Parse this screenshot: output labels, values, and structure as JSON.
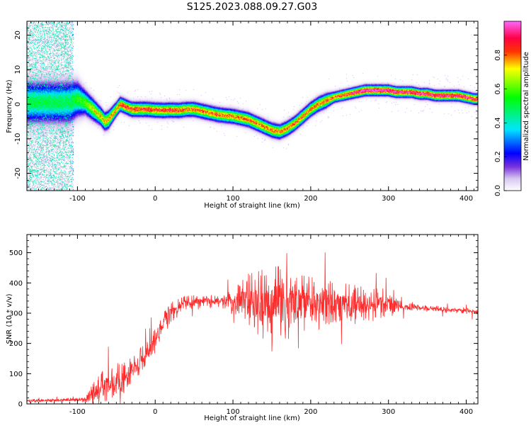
{
  "figure_title": "S125.2023.088.09.27.G03",
  "colorbar": {
    "label": "Normalized spectral amplitude",
    "ticks": [
      0.0,
      0.2,
      0.4,
      0.6,
      0.8
    ],
    "tick_labels": [
      "0.0",
      "0.2",
      "0.4",
      "0.6",
      "0.8"
    ],
    "range": [
      0,
      1
    ]
  },
  "chart_data": [
    {
      "type": "heatmap",
      "title": "",
      "xlabel": "Height of straight line (km)",
      "ylabel": "Frequency (Hz)",
      "xlim": [
        -165,
        415
      ],
      "ylim": [
        -25,
        24
      ],
      "xticks": [
        -100,
        0,
        100,
        200,
        300,
        400
      ],
      "xtick_labels": [
        "-100",
        "0",
        "100",
        "200",
        "300",
        "400"
      ],
      "yticks": [
        -20,
        -10,
        0,
        10,
        20
      ],
      "ytick_labels": [
        "-20",
        "-10",
        "0",
        "10",
        "20"
      ],
      "colormap": [
        "#ffffff",
        "#9966ee",
        "#5500cc",
        "#0000ff",
        "#00e0ff",
        "#00ff00",
        "#ffff00",
        "#ff4400",
        "#ff0044",
        "#ff66ff"
      ],
      "ridge": {
        "x": [
          -110,
          -100,
          -90,
          -80,
          -70,
          -65,
          -60,
          -50,
          -45,
          -40,
          -30,
          -20,
          -10,
          0,
          10,
          20,
          30,
          40,
          50,
          60,
          70,
          80,
          90,
          100,
          110,
          120,
          130,
          140,
          150,
          160,
          170,
          180,
          190,
          200,
          210,
          220,
          230,
          240,
          250,
          260,
          270,
          280,
          290,
          300,
          310,
          320,
          330,
          340,
          350,
          360,
          370,
          380,
          390,
          400,
          410,
          415
        ],
        "y": [
          0.5,
          1.5,
          0.5,
          -1.5,
          -3.5,
          -5.0,
          -4.5,
          -1.5,
          0.0,
          -0.5,
          -1.5,
          -1.5,
          -1.5,
          -1.7,
          -1.8,
          -1.7,
          -1.8,
          -1.5,
          -1.5,
          -2.0,
          -2.5,
          -3.0,
          -3.3,
          -3.5,
          -4.0,
          -4.5,
          -5.5,
          -6.5,
          -7.5,
          -8.0,
          -7.0,
          -5.5,
          -3.5,
          -1.5,
          0.0,
          1.0,
          2.0,
          2.5,
          3.0,
          3.5,
          4.0,
          4.0,
          4.0,
          4.0,
          3.5,
          3.5,
          3.5,
          3.0,
          3.0,
          2.5,
          2.5,
          2.5,
          2.5,
          2.0,
          1.5,
          1.5
        ],
        "width": [
          6.0,
          5.0,
          3.5,
          3.0,
          2.5,
          2.5,
          2.5,
          2.0,
          2.0,
          2.0,
          2.0,
          2.0,
          2.0,
          2.0,
          2.0,
          2.0,
          2.0,
          2.0,
          2.0,
          2.0,
          2.0,
          2.0,
          2.0,
          2.0,
          2.0,
          2.0,
          2.0,
          2.0,
          2.0,
          2.0,
          2.0,
          2.0,
          2.0,
          2.0,
          2.0,
          2.0,
          1.5,
          1.5,
          1.5,
          1.5,
          1.5,
          1.5,
          1.5,
          1.5,
          1.5,
          1.5,
          1.5,
          1.5,
          1.5,
          1.5,
          1.5,
          1.5,
          1.5,
          1.5,
          1.5,
          1.5
        ],
        "peak": [
          0.5,
          0.55,
          0.6,
          0.7,
          0.75,
          0.75,
          0.75,
          0.8,
          0.8,
          0.85,
          0.85,
          0.85,
          0.85,
          0.85,
          0.85,
          0.85,
          0.85,
          0.8,
          0.8,
          0.8,
          0.8,
          0.8,
          0.8,
          0.8,
          0.8,
          0.8,
          0.8,
          0.8,
          0.8,
          0.8,
          0.8,
          0.8,
          0.8,
          0.8,
          0.8,
          0.8,
          0.8,
          0.85,
          0.9,
          0.95,
          1.0,
          1.0,
          1.0,
          1.0,
          0.95,
          0.95,
          0.95,
          0.95,
          0.95,
          0.95,
          0.95,
          0.95,
          0.95,
          0.95,
          0.9,
          0.9
        ]
      },
      "noise_region": {
        "xmin": -165,
        "xmax": -105,
        "level": 0.35
      }
    },
    {
      "type": "line",
      "title": "",
      "xlabel": "Height of straight line (km)",
      "ylabel": "SNR (10 * v/v)",
      "xlim": [
        -165,
        415
      ],
      "ylim": [
        0,
        560
      ],
      "xticks": [
        -100,
        0,
        100,
        200,
        300,
        400
      ],
      "xtick_labels": [
        "-100",
        "0",
        "100",
        "200",
        "300",
        "400"
      ],
      "yticks": [
        0,
        100,
        200,
        300,
        400,
        500
      ],
      "ytick_labels": [
        "0",
        "100",
        "200",
        "300",
        "400",
        "500"
      ],
      "color": "#ff2a2a",
      "series": [
        {
          "envelope_x": [
            -165,
            -120,
            -90,
            -80,
            -70,
            -60,
            -50,
            -40,
            -30,
            -20,
            -10,
            0,
            10,
            20,
            30,
            40,
            50,
            60,
            70,
            80,
            90,
            100,
            110,
            120,
            130,
            140,
            150,
            160,
            170,
            180,
            190,
            200,
            210,
            220,
            230,
            240,
            250,
            260,
            270,
            280,
            290,
            300,
            310,
            320,
            330,
            340,
            350,
            360,
            370,
            380,
            390,
            400,
            410,
            415
          ],
          "envelope_mean": [
            10,
            12,
            15,
            30,
            50,
            70,
            80,
            90,
            110,
            140,
            170,
            210,
            260,
            300,
            320,
            330,
            335,
            340,
            340,
            340,
            335,
            330,
            330,
            335,
            330,
            330,
            330,
            335,
            330,
            330,
            330,
            330,
            330,
            330,
            330,
            330,
            330,
            330,
            330,
            330,
            330,
            330,
            325,
            320,
            320,
            318,
            315,
            315,
            312,
            310,
            310,
            308,
            305,
            300
          ],
          "envelope_spread": [
            6,
            6,
            8,
            40,
            60,
            60,
            55,
            50,
            45,
            45,
            40,
            40,
            40,
            35,
            30,
            30,
            25,
            20,
            20,
            20,
            25,
            60,
            90,
            100,
            110,
            120,
            130,
            120,
            110,
            100,
            95,
            90,
            85,
            80,
            75,
            70,
            70,
            65,
            60,
            60,
            55,
            50,
            25,
            15,
            12,
            10,
            10,
            10,
            10,
            10,
            10,
            10,
            10,
            10
          ]
        }
      ]
    }
  ]
}
